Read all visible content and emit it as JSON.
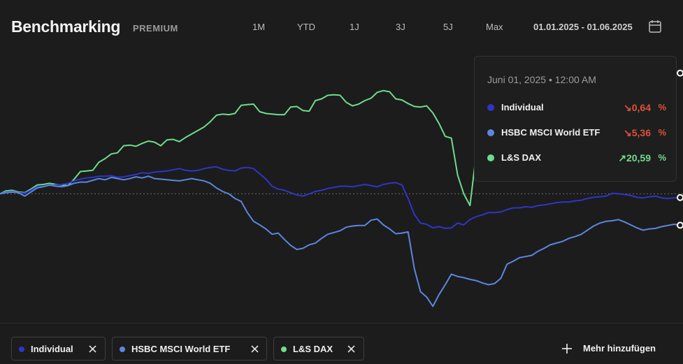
{
  "header": {
    "title": "Benchmarking",
    "badge": "PREMIUM",
    "ranges": [
      "1M",
      "YTD",
      "1J",
      "3J",
      "5J",
      "Max"
    ],
    "date_range": "01.01.2025 - 01.06.2025"
  },
  "tooltip": {
    "date": "Juni 01, 2025 • 12:00 AM",
    "rows": [
      {
        "name": "Individual",
        "arrow": "↘",
        "value": "0,64",
        "unit": "%",
        "color": "#e0503a",
        "dot": "#2f35c8"
      },
      {
        "name": "HSBC MSCI World ETF",
        "arrow": "↘",
        "value": "5,36",
        "unit": "%",
        "color": "#e0503a",
        "dot": "#5b87e0"
      },
      {
        "name": "L&S DAX",
        "arrow": "↗",
        "value": "20,59",
        "unit": "%",
        "color": "#6fdc8c",
        "dot": "#6fdc8c"
      }
    ]
  },
  "legend": {
    "chips": [
      {
        "label": "Individual",
        "color": "#2f35c8"
      },
      {
        "label": "HSBC MSCI World ETF",
        "color": "#5b87e0"
      },
      {
        "label": "L&S DAX",
        "color": "#6fdc8c"
      }
    ],
    "add_more": "Mehr hinzufügen"
  },
  "colors": {
    "individual": "#2f35c8",
    "msci": "#5b87e0",
    "dax": "#6fdc8c",
    "negative": "#e0503a",
    "positive": "#6fdc8c"
  },
  "chart_data": {
    "type": "line",
    "x_range": [
      "2025-01-01",
      "2025-06-01"
    ],
    "baseline": 0,
    "ylim": [
      -22,
      24
    ],
    "unit": "%",
    "series": [
      {
        "name": "L&S DAX",
        "color": "#6fdc8c",
        "values": [
          0,
          0.5,
          0.6,
          0.3,
          0.2,
          0.8,
          1.5,
          1.6,
          1.8,
          1.6,
          1.5,
          1.4,
          2.5,
          3.8,
          3.9,
          4.0,
          5.4,
          6.0,
          6.8,
          7.0,
          8.2,
          8.3,
          8.1,
          8.6,
          9.0,
          8.8,
          8.2,
          9.2,
          9.3,
          8.9,
          9.6,
          10.2,
          10.8,
          11.4,
          12.3,
          13.4,
          13.6,
          13.5,
          13.7,
          15.1,
          15.2,
          15.3,
          14.0,
          13.7,
          13.6,
          13.5,
          13.5,
          14.8,
          14.9,
          14.2,
          14.1,
          15.9,
          16.2,
          16.8,
          16.9,
          16.8,
          15.6,
          15.0,
          15.3,
          15.9,
          16.3,
          17.3,
          17.6,
          17.4,
          16.2,
          16.0,
          15.4,
          14.9,
          14.8,
          15.0,
          13.8,
          12.0,
          9.8,
          9.5,
          3.2,
          0.0,
          -2.0,
          6.7,
          4.4,
          4.2,
          5.0,
          5.8,
          6.0,
          5.9,
          6.8,
          7.0,
          7.8,
          8.1,
          8.5,
          8.9,
          9.2,
          9.6,
          10.2,
          10.9,
          11.1,
          11.6,
          11.8,
          12.0,
          12.3,
          12.7,
          13.2,
          13.8,
          14.3,
          14.9,
          15.8,
          16.9,
          17.8,
          18.8,
          19.6,
          20.6,
          20.59
        ]
      },
      {
        "name": "Individual",
        "color": "#2f35c8",
        "values": [
          0,
          0.3,
          0.4,
          0.2,
          0.1,
          0.6,
          1.2,
          1.3,
          1.4,
          1.5,
          1.6,
          1.8,
          2.2,
          2.5,
          2.7,
          2.8,
          3.0,
          3.0,
          3.1,
          2.8,
          2.9,
          3.1,
          3.3,
          3.6,
          3.5,
          3.7,
          3.8,
          3.9,
          4.1,
          4.3,
          4.0,
          3.9,
          4.0,
          4.3,
          4.5,
          4.6,
          4.2,
          4.0,
          3.9,
          4.4,
          4.5,
          4.3,
          3.4,
          2.5,
          1.3,
          0.8,
          0.6,
          0.2,
          -0.2,
          -0.4,
          0.0,
          0.4,
          0.6,
          0.9,
          1.1,
          1.3,
          1.3,
          1.2,
          1.4,
          1.6,
          1.4,
          1.2,
          1.6,
          1.8,
          1.9,
          1.5,
          -0.8,
          -3.5,
          -5.0,
          -5.2,
          -5.8,
          -5.6,
          -5.9,
          -5.8,
          -5.0,
          -5.3,
          -4.4,
          -3.9,
          -3.6,
          -3.2,
          -3.2,
          -3.1,
          -2.7,
          -2.4,
          -2.4,
          -2.2,
          -2.3,
          -2.0,
          -1.9,
          -1.7,
          -1.5,
          -1.4,
          -1.4,
          -1.2,
          -1.1,
          -0.8,
          -0.6,
          -0.5,
          -0.4,
          0.1,
          0.0,
          -0.1,
          -0.3,
          -0.6,
          -0.7,
          -0.5,
          -0.4,
          -0.7,
          -0.8,
          -0.7,
          -0.64
        ]
      },
      {
        "name": "HSBC MSCI World ETF",
        "color": "#5b87e0",
        "values": [
          0,
          0.2,
          0.3,
          0.2,
          -0.4,
          0.3,
          1.0,
          1.2,
          1.5,
          1.3,
          1.2,
          1.4,
          1.8,
          2.0,
          2.0,
          2.3,
          2.6,
          2.4,
          2.8,
          2.6,
          2.4,
          2.6,
          2.9,
          2.7,
          3.0,
          2.6,
          2.5,
          2.4,
          2.3,
          2.2,
          2.4,
          2.6,
          2.4,
          2.2,
          1.8,
          1.0,
          0.4,
          0.0,
          -0.8,
          -1.3,
          -3.2,
          -4.7,
          -5.3,
          -6.0,
          -6.9,
          -6.7,
          -7.8,
          -8.8,
          -9.5,
          -9.3,
          -8.7,
          -8.4,
          -7.6,
          -6.9,
          -6.6,
          -6.3,
          -5.7,
          -5.5,
          -5.4,
          -5.4,
          -4.5,
          -4.3,
          -5.3,
          -6.0,
          -6.8,
          -6.7,
          -6.5,
          -12.7,
          -16.7,
          -17.6,
          -19.2,
          -17.2,
          -15.5,
          -13.7,
          -14.1,
          -14.3,
          -14.6,
          -14.8,
          -15.2,
          -15.5,
          -15.3,
          -14.4,
          -12.0,
          -11.5,
          -10.9,
          -10.7,
          -10.5,
          -9.8,
          -9.3,
          -8.7,
          -8.4,
          -8.1,
          -7.6,
          -7.3,
          -6.9,
          -6.2,
          -5.5,
          -5.0,
          -4.7,
          -4.6,
          -4.4,
          -4.8,
          -5.3,
          -5.8,
          -6.2,
          -6.0,
          -5.9,
          -5.6,
          -5.4,
          -5.2,
          -5.36
        ]
      }
    ]
  }
}
